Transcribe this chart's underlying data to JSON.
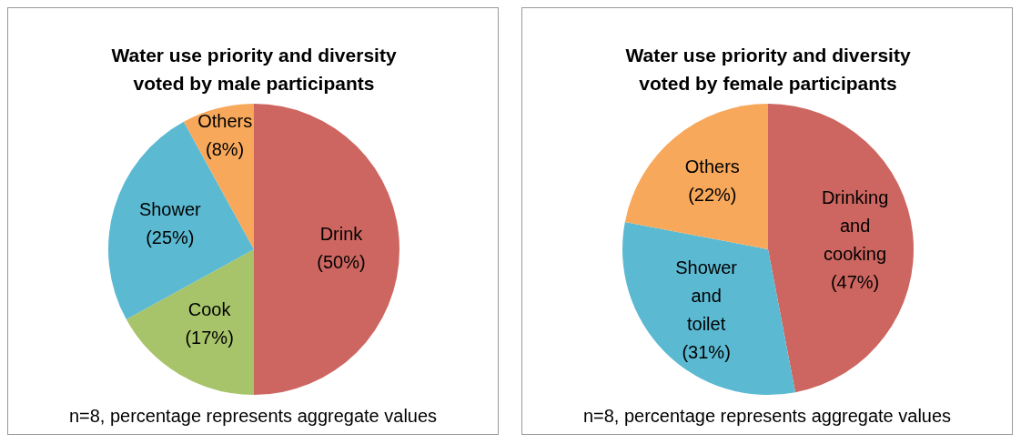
{
  "chart_data": [
    {
      "type": "pie",
      "title": "Water use priority and diversity voted by male participants",
      "categories": [
        "Drink",
        "Cook",
        "Shower",
        "Others"
      ],
      "values": [
        50,
        17,
        25,
        8
      ],
      "value_labels": [
        "(50%)",
        "(17%)",
        "(25%)",
        "(8%)"
      ],
      "colors": [
        "#cd6660",
        "#a8c46a",
        "#5bb9d2",
        "#f7a85b"
      ],
      "annotations": [
        "n=8, percentage represents aggregate values"
      ]
    },
    {
      "type": "pie",
      "title": "Water use priority and diversity voted by female participants",
      "categories": [
        "Drinking and cooking",
        "Shower and toilet",
        "Others"
      ],
      "values": [
        47,
        31,
        22
      ],
      "value_labels": [
        "(47%)",
        "(31%)",
        "(22%)"
      ],
      "colors": [
        "#cd6660",
        "#5bb9d2",
        "#f7a85b"
      ],
      "annotations": [
        "n=8, percentage represents aggregate values"
      ]
    }
  ]
}
